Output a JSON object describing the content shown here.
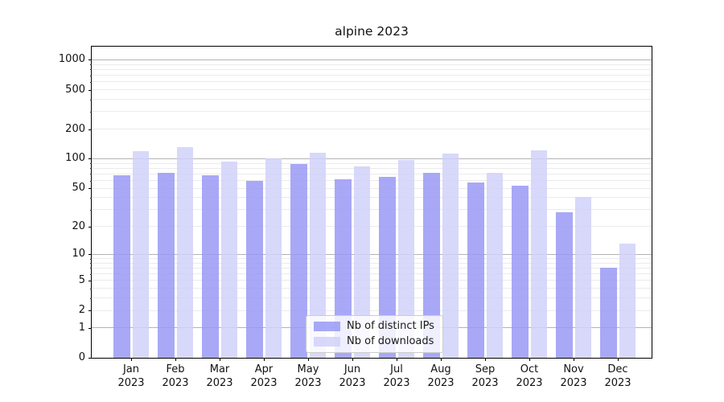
{
  "chart_data": {
    "type": "bar",
    "title": "alpine 2023",
    "yscale": "log1p",
    "grid": true,
    "legend_position": "lower center",
    "ylim": [
      0,
      1358
    ],
    "y_ticks": [
      0,
      1,
      2,
      5,
      10,
      20,
      50,
      100,
      200,
      500,
      1000
    ],
    "categories": [
      "Jan",
      "Feb",
      "Mar",
      "Apr",
      "May",
      "Jun",
      "Jul",
      "Aug",
      "Sep",
      "Oct",
      "Nov",
      "Dec"
    ],
    "category_year": "2023",
    "series": [
      {
        "name": "Nb of distinct IPs",
        "key": "distinct-ips",
        "color": "rgba(153,153,246,0.85)",
        "values": [
          68,
          72,
          68,
          59,
          89,
          62,
          65,
          72,
          57,
          53,
          28,
          7
        ]
      },
      {
        "name": "Nb of downloads",
        "key": "downloads",
        "color": "rgba(209,209,249,0.85)",
        "values": [
          119,
          131,
          94,
          101,
          115,
          84,
          97,
          114,
          72,
          122,
          41,
          13
        ]
      }
    ],
    "colors": {
      "major_grid": "#b3b3b3",
      "minor_grid": "#ebebeb",
      "axis": "#000000"
    }
  }
}
